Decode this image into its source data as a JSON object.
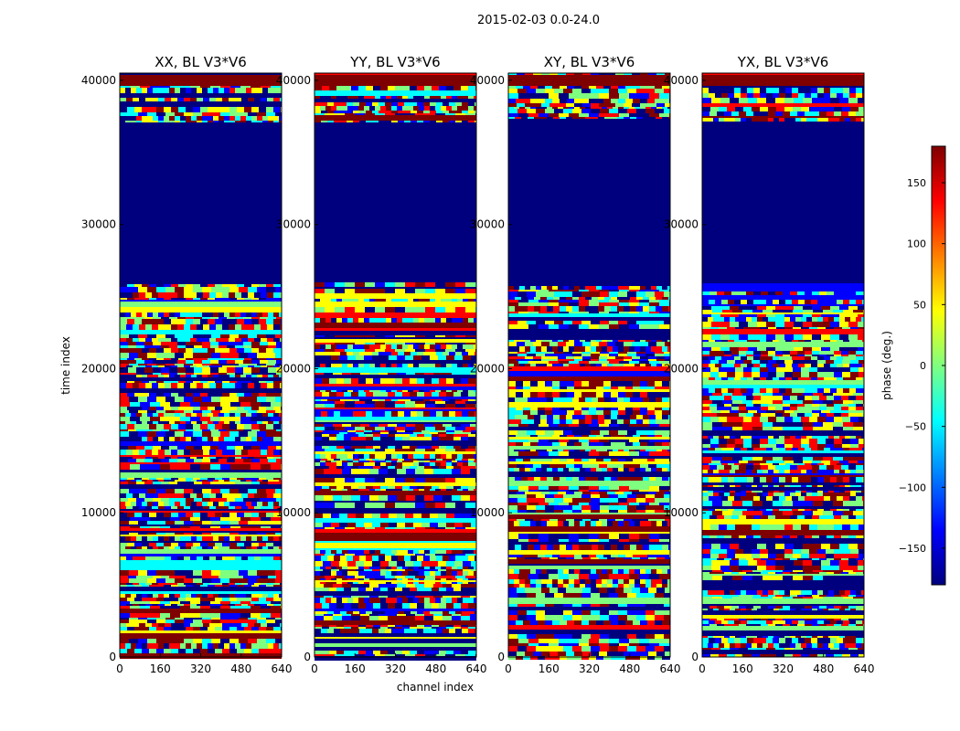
{
  "figure": {
    "suptitle": "2015-02-03 0.0-24.0"
  },
  "chart_data": {
    "type": "heatmap",
    "xlabel": "channel index",
    "ylabel": "time index",
    "xlim": [
      0,
      640
    ],
    "ylim": [
      0,
      40500
    ],
    "xticks": [
      0,
      160,
      320,
      480,
      640
    ],
    "yticks": [
      0,
      10000,
      20000,
      30000,
      40000
    ],
    "panels": [
      {
        "title": "XX, BL V3*V6",
        "polarization": "XX",
        "flagged_band": [
          26000,
          37000
        ]
      },
      {
        "title": "YY, BL V3*V6",
        "polarization": "YY",
        "flagged_band": [
          26000,
          37000
        ]
      },
      {
        "title": "XY, BL V3*V6",
        "polarization": "XY",
        "flagged_band": [
          26000,
          37000
        ]
      },
      {
        "title": "YX, BL V3*V6",
        "polarization": "YX",
        "flagged_band": [
          26000,
          37000
        ]
      }
    ],
    "colorbar": {
      "label": "phase (deg.)",
      "range": [
        -180,
        180
      ],
      "ticks": [
        -150,
        -100,
        -50,
        0,
        50,
        100,
        150
      ],
      "colormap": "jet",
      "colormap_stops": [
        "#00007f",
        "#0000ff",
        "#00ffff",
        "#7fff7f",
        "#ffff00",
        "#ff0000",
        "#7f0000"
      ]
    }
  }
}
